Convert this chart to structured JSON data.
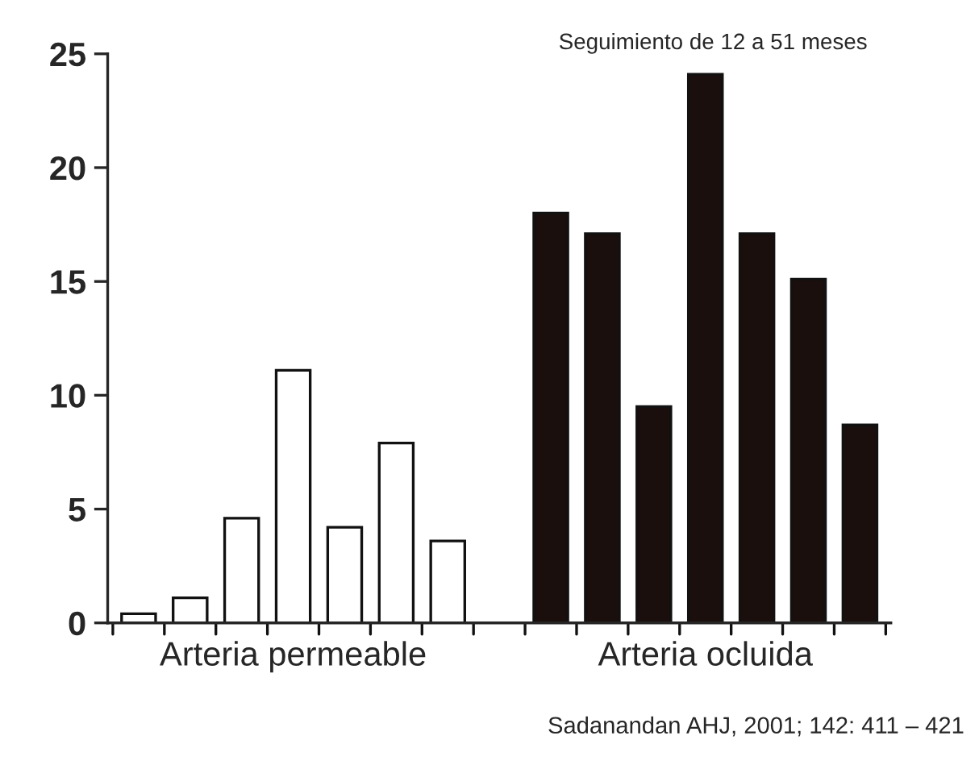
{
  "chart_data": {
    "type": "bar",
    "subtitle": "Seguimiento de 12 a 51 meses",
    "categories": [
      null,
      null,
      null,
      null,
      null,
      null,
      null,
      null,
      null,
      null,
      null,
      null,
      null,
      null,
      null
    ],
    "series": [
      {
        "color": "#ffffff",
        "values": [
          0.4,
          1.1,
          4.6,
          11.1,
          4.2,
          7.9,
          3.6,
          null,
          null,
          null,
          null,
          null,
          null,
          null,
          null
        ]
      },
      {
        "color": "#1a0f0c",
        "values": [
          null,
          null,
          null,
          null,
          null,
          null,
          null,
          null,
          18.0,
          17.1,
          9.5,
          24.1,
          17.1,
          15.1,
          8.7
        ]
      }
    ],
    "annotations": [
      "Arteria permeable",
      "Arteria ocluida",
      "Sadanandan AHJ, 2001; 142: 411 – 421"
    ],
    "ylim": [
      0,
      25
    ],
    "yticks": [
      0,
      5,
      10,
      15,
      20,
      25
    ]
  }
}
